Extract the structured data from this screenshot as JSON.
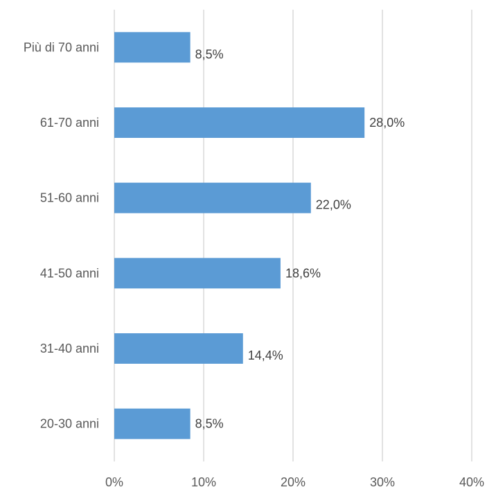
{
  "chart_data": {
    "type": "bar",
    "orientation": "horizontal",
    "categories": [
      "Più di 70 anni",
      "61-70 anni",
      "51-60 anni",
      "41-50 anni",
      "31-40 anni",
      "20-30 anni"
    ],
    "values": [
      8.5,
      28.0,
      22.0,
      18.6,
      14.4,
      8.5
    ],
    "data_labels": [
      "8,5%",
      "28,0%",
      "22,0%",
      "18,6%",
      "14,4%",
      "8,5%"
    ],
    "x_ticks": [
      0,
      10,
      20,
      30,
      40
    ],
    "x_tick_labels": [
      "0%",
      "10%",
      "20%",
      "30%",
      "40%"
    ],
    "xlim": [
      0,
      40
    ],
    "title": "",
    "xlabel": "",
    "ylabel": "",
    "grid": "vertical",
    "legend": "none",
    "bar_color": "#5b9bd5"
  }
}
